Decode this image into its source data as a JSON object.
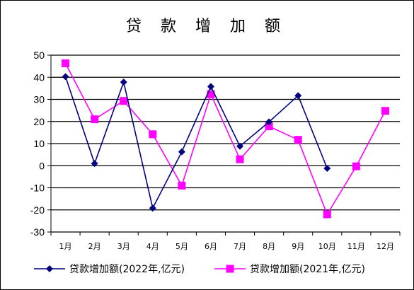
{
  "chart_data": {
    "type": "line",
    "title": "贷 款 增 加 额",
    "categories": [
      "1月",
      "2月",
      "3月",
      "4月",
      "5月",
      "6月",
      "7月",
      "8月",
      "9月",
      "10月",
      "11月",
      "12月"
    ],
    "ylim": [
      -30,
      50
    ],
    "yticks": [
      50,
      40,
      30,
      20,
      10,
      0,
      -10,
      -20,
      -30
    ],
    "grid": true,
    "legend_position": "bottom",
    "series": [
      {
        "name": "贷款增加额(2022年,亿元)",
        "color": "#000080",
        "marker": "diamond",
        "values": [
          40.3,
          1.0,
          37.8,
          -19.2,
          6.3,
          35.8,
          8.8,
          19.8,
          31.7,
          -1.2,
          null,
          null
        ]
      },
      {
        "name": "贷款增加额(2021年,亿元)",
        "color": "#ff00ff",
        "marker": "square",
        "values": [
          46.3,
          21.0,
          29.3,
          14.2,
          -9.0,
          32.3,
          2.9,
          17.8,
          11.7,
          -22.0,
          -0.3,
          24.8
        ]
      }
    ]
  }
}
